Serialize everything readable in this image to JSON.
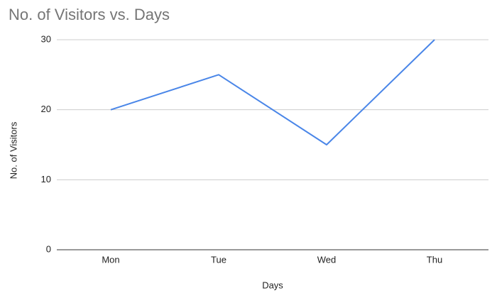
{
  "chart_data": {
    "type": "line",
    "title": "No. of Visitors vs. Days",
    "x_label": "Days",
    "y_label": "No. of Visitors",
    "categories": [
      "Mon",
      "Tue",
      "Wed",
      "Thu"
    ],
    "values": [
      20,
      25,
      15,
      30
    ],
    "color": "#4a86e8",
    "ylim": [
      0,
      30
    ],
    "yticks": [
      0,
      10,
      20,
      30
    ],
    "grid": true
  }
}
